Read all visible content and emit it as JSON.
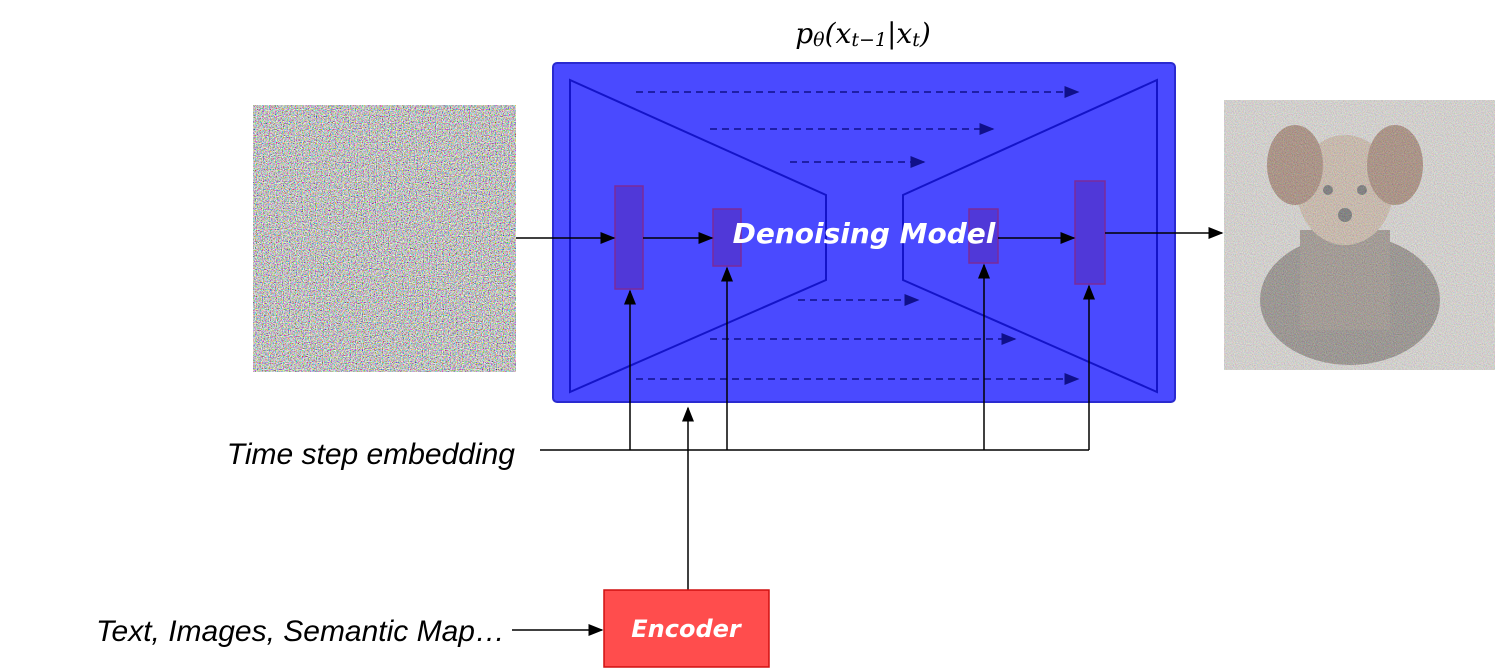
{
  "formula": [
    "p",
    "θ",
    "(x",
    "t−1",
    "|x",
    "t",
    ")"
  ],
  "model": {
    "label": "Denoising Model"
  },
  "time_step": {
    "label": "Time step embedding"
  },
  "condition": {
    "label": "Text, Images, Semantic Map…"
  },
  "encoder": {
    "label": "Encoder"
  }
}
